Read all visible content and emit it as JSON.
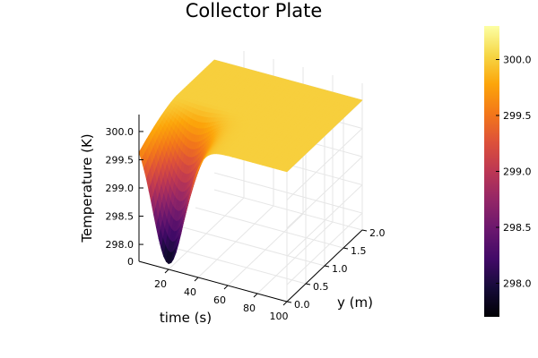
{
  "chart_data": {
    "type": "surface",
    "title": "Collector Plate",
    "xlabel": "time (s)",
    "ylabel": "y (m)",
    "zlabel": "Temperature (K)",
    "xticks": [
      "20",
      "40",
      "60",
      "80",
      "100"
    ],
    "yticks": [
      "0.0",
      "0.5",
      "1.0",
      "1.5",
      "2.0"
    ],
    "zticks": [
      "298.0",
      "298.5",
      "299.0",
      "299.5",
      "300.0"
    ],
    "z_floor_tick": "0",
    "xlim": [
      0,
      100
    ],
    "ylim": [
      0,
      2
    ],
    "zlim": [
      297.7,
      300.3
    ],
    "colorbar": {
      "colormap": "inferno",
      "range": [
        297.7,
        300.3
      ],
      "ticks": [
        "298.0",
        "298.5",
        "299.0",
        "299.5",
        "300.0"
      ]
    },
    "surface": {
      "description": "T(t, y) = 300 - 2.2 * exp(-((t - 20)/15)^2) * max(0, 1 - y)^1.5",
      "t_range": [
        0,
        100
      ],
      "y_range": [
        0,
        2
      ],
      "base_temperature": 300,
      "dip_depth_at_y0": 2.2,
      "dip_center_time": 20,
      "dip_width_time": 15
    },
    "grid": true
  }
}
